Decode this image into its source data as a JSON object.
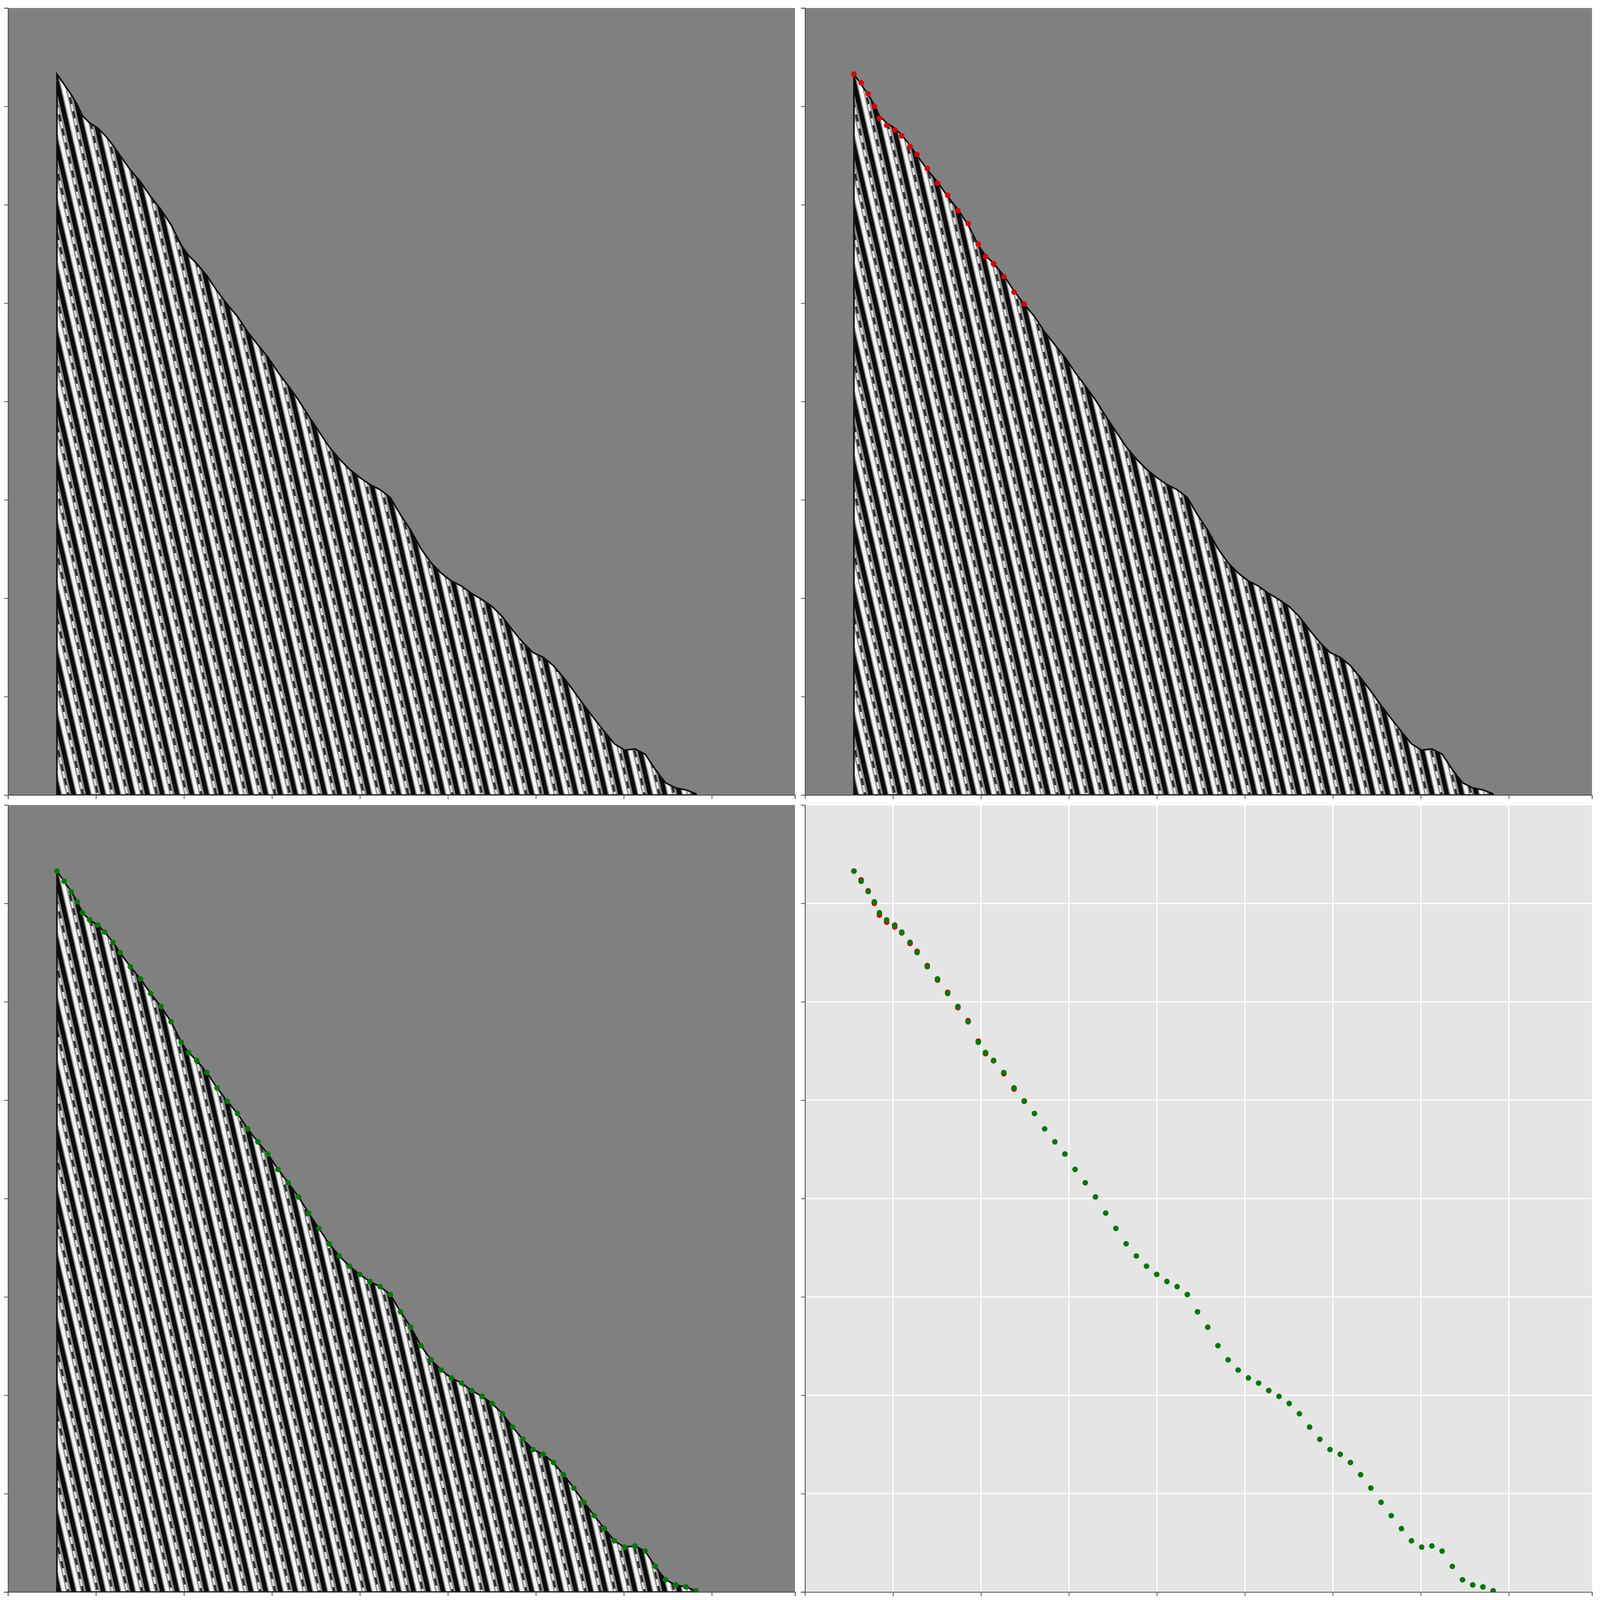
{
  "chart_data": [
    {
      "type": "seismic",
      "xlim": [
        0,
        447.3
      ],
      "ylim": [
        2000,
        0
      ],
      "xticks": [
        0,
        50,
        100,
        150,
        200,
        250,
        300,
        350,
        400
      ],
      "yticks": [
        0,
        250,
        500,
        750,
        1000,
        1250,
        1500,
        1750,
        2000
      ],
      "tick_labels": false,
      "first_arrival": {
        "x": [
          27.8,
          31.9,
          35.9,
          39.4,
          42.3,
          46.4,
          51.0,
          55.0,
          59.7,
          63.7,
          69.5,
          75.3,
          81.1,
          86.9,
          92.7,
          98.5,
          102.6,
          107.2,
          113.0,
          118.8,
          124.6,
          130.4,
          136.2,
          142.0,
          147.7,
          153.5,
          159.3,
          165.1,
          170.9,
          176.7,
          182.5,
          188.3,
          194.1,
          199.9,
          205.7,
          211.5,
          217.3,
          223.1,
          228.9,
          234.7,
          240.5,
          246.2,
          252.0,
          257.8,
          263.6,
          269.4,
          275.2,
          281.0,
          286.8,
          292.6,
          298.4,
          304.2,
          310.0,
          315.8,
          321.6,
          327.4,
          333.2,
          339.0,
          344.7,
          350.5,
          356.3,
          362.1,
          367.9,
          373.7,
          379.5,
          385.3,
          391.1
        ],
        "values": [
          168,
          194,
          220,
          246,
          274,
          292,
          305,
          323,
          349,
          375,
          411,
          442,
          479,
          512,
          551,
          603,
          629,
          649,
          680,
          719,
          753,
          784,
          823,
          856,
          887,
          926,
          960,
          996,
          1037,
          1076,
          1115,
          1146,
          1172,
          1193,
          1211,
          1224,
          1244,
          1288,
          1327,
          1374,
          1410,
          1436,
          1456,
          1469,
          1488,
          1503,
          1521,
          1547,
          1581,
          1612,
          1638,
          1650,
          1671,
          1702,
          1736,
          1772,
          1806,
          1839,
          1870,
          1886,
          1883,
          1896,
          1935,
          1969,
          1982,
          1987,
          1997
        ]
      }
    },
    {
      "type": "seismic",
      "xlim": [
        0,
        447.3
      ],
      "ylim": [
        2000,
        0
      ],
      "xticks": [
        0,
        50,
        100,
        150,
        200,
        250,
        300,
        350,
        400
      ],
      "yticks": [
        0,
        250,
        500,
        750,
        1000,
        1250,
        1500,
        1750,
        2000
      ],
      "tick_labels": false,
      "first_arrival": {
        "x": [
          27.8,
          31.9,
          35.9,
          39.4,
          42.3,
          46.4,
          51.0,
          55.0,
          59.7,
          63.7,
          69.5,
          75.3,
          81.1,
          86.9,
          92.7,
          98.5,
          102.6,
          107.2,
          113.0,
          118.8,
          124.6,
          130.4,
          136.2,
          142.0,
          147.7,
          153.5,
          159.3,
          165.1,
          170.9,
          176.7,
          182.5,
          188.3,
          194.1,
          199.9,
          205.7,
          211.5,
          217.3,
          223.1,
          228.9,
          234.7,
          240.5,
          246.2,
          252.0,
          257.8,
          263.6,
          269.4,
          275.2,
          281.0,
          286.8,
          292.6,
          298.4,
          304.2,
          310.0,
          315.8,
          321.6,
          327.4,
          333.2,
          339.0,
          344.7,
          350.5,
          356.3,
          362.1,
          367.9,
          373.7,
          379.5,
          385.3,
          391.1
        ],
        "values": [
          168,
          194,
          220,
          246,
          274,
          292,
          305,
          323,
          349,
          375,
          411,
          442,
          479,
          512,
          551,
          603,
          629,
          649,
          680,
          719,
          753,
          784,
          823,
          856,
          887,
          926,
          960,
          996,
          1037,
          1076,
          1115,
          1146,
          1172,
          1193,
          1211,
          1224,
          1244,
          1288,
          1327,
          1374,
          1410,
          1436,
          1456,
          1469,
          1488,
          1503,
          1521,
          1547,
          1581,
          1612,
          1638,
          1650,
          1671,
          1702,
          1736,
          1772,
          1806,
          1839,
          1870,
          1886,
          1883,
          1896,
          1935,
          1969,
          1982,
          1987,
          1997
        ]
      },
      "series": [
        {
          "color": "#e00000",
          "marker": "circle",
          "x": [
            27.8,
            31.9,
            35.9,
            39.4,
            42.3,
            46.4,
            51.0,
            55.0,
            59.7,
            63.7,
            69.5,
            75.3,
            81.1,
            86.9,
            92.7,
            98.5,
            102.6,
            107.2,
            113.0,
            118.8,
            124.6
          ],
          "values": [
            168,
            190,
            218,
            250,
            280,
            298,
            310,
            325,
            352,
            372,
            408,
            445,
            476,
            515,
            548,
            600,
            632,
            650,
            683,
            722,
            752
          ]
        }
      ]
    },
    {
      "type": "seismic",
      "xlim": [
        0,
        447.3
      ],
      "ylim": [
        2000,
        0
      ],
      "xticks": [
        0,
        50,
        100,
        150,
        200,
        250,
        300,
        350,
        400
      ],
      "yticks": [
        0,
        250,
        500,
        750,
        1000,
        1250,
        1500,
        1750,
        2000
      ],
      "tick_labels": false,
      "first_arrival": {
        "x": [
          27.8,
          31.9,
          35.9,
          39.4,
          42.3,
          46.4,
          51.0,
          55.0,
          59.7,
          63.7,
          69.5,
          75.3,
          81.1,
          86.9,
          92.7,
          98.5,
          102.6,
          107.2,
          113.0,
          118.8,
          124.6,
          130.4,
          136.2,
          142.0,
          147.7,
          153.5,
          159.3,
          165.1,
          170.9,
          176.7,
          182.5,
          188.3,
          194.1,
          199.9,
          205.7,
          211.5,
          217.3,
          223.1,
          228.9,
          234.7,
          240.5,
          246.2,
          252.0,
          257.8,
          263.6,
          269.4,
          275.2,
          281.0,
          286.8,
          292.6,
          298.4,
          304.2,
          310.0,
          315.8,
          321.6,
          327.4,
          333.2,
          339.0,
          344.7,
          350.5,
          356.3,
          362.1,
          367.9,
          373.7,
          379.5,
          385.3,
          391.1
        ],
        "values": [
          168,
          194,
          220,
          246,
          274,
          292,
          305,
          323,
          349,
          375,
          411,
          442,
          479,
          512,
          551,
          603,
          629,
          649,
          680,
          719,
          753,
          784,
          823,
          856,
          887,
          926,
          960,
          996,
          1037,
          1076,
          1115,
          1146,
          1172,
          1193,
          1211,
          1224,
          1244,
          1288,
          1327,
          1374,
          1410,
          1436,
          1456,
          1469,
          1488,
          1503,
          1521,
          1547,
          1581,
          1612,
          1638,
          1650,
          1671,
          1702,
          1736,
          1772,
          1806,
          1839,
          1870,
          1886,
          1883,
          1896,
          1935,
          1969,
          1982,
          1987,
          1997
        ]
      },
      "series": [
        {
          "color": "#007a00",
          "marker": "circle",
          "x": [
            27.8,
            31.9,
            35.9,
            39.4,
            42.3,
            46.4,
            51.0,
            55.0,
            59.7,
            63.7,
            69.5,
            75.3,
            81.1,
            86.9,
            92.7,
            98.5,
            102.6,
            107.2,
            113.0,
            118.8,
            124.6,
            130.4,
            136.2,
            142.0,
            147.7,
            153.5,
            159.3,
            165.1,
            170.9,
            176.7,
            182.5,
            188.3,
            194.1,
            199.9,
            205.7,
            211.5,
            217.3,
            223.1,
            228.9,
            234.7,
            240.5,
            246.2,
            252.0,
            257.8,
            263.6,
            269.4,
            275.2,
            281.0,
            286.8,
            292.6,
            298.4,
            304.2,
            310.0,
            315.8,
            321.6,
            327.4,
            333.2,
            339.0,
            344.7,
            350.5,
            356.3,
            362.1,
            367.9,
            373.7,
            379.5,
            385.3,
            391.1
          ],
          "values": [
            168,
            194,
            220,
            246,
            274,
            292,
            305,
            323,
            349,
            375,
            411,
            442,
            479,
            512,
            551,
            603,
            629,
            649,
            680,
            719,
            753,
            784,
            823,
            856,
            887,
            926,
            960,
            996,
            1037,
            1076,
            1115,
            1146,
            1172,
            1193,
            1211,
            1224,
            1244,
            1288,
            1327,
            1374,
            1410,
            1436,
            1456,
            1469,
            1488,
            1503,
            1521,
            1547,
            1581,
            1612,
            1638,
            1650,
            1671,
            1702,
            1736,
            1772,
            1806,
            1839,
            1870,
            1886,
            1883,
            1896,
            1935,
            1969,
            1982,
            1987,
            1997
          ]
        }
      ]
    },
    {
      "type": "scatter",
      "xlim": [
        0,
        447.3
      ],
      "ylim": [
        2000,
        0
      ],
      "xticks": [
        0,
        50,
        100,
        150,
        200,
        250,
        300,
        350,
        400
      ],
      "yticks": [
        0,
        250,
        500,
        750,
        1000,
        1250,
        1500,
        1750,
        2000
      ],
      "tick_labels": false,
      "grid": true,
      "series": [
        {
          "color": "#e00000",
          "marker": "circle",
          "x": [
            27.8,
            31.9,
            35.9,
            39.4,
            42.3,
            46.4,
            51.0,
            55.0,
            59.7,
            63.7,
            69.5,
            75.3,
            81.1,
            86.9,
            92.7,
            98.5,
            102.6,
            107.2,
            113.0,
            118.8,
            124.6
          ],
          "values": [
            168,
            190,
            218,
            250,
            280,
            298,
            310,
            325,
            352,
            372,
            408,
            445,
            476,
            515,
            548,
            600,
            632,
            650,
            683,
            722,
            752
          ]
        },
        {
          "color": "#007a00",
          "marker": "circle",
          "x": [
            27.8,
            31.9,
            35.9,
            39.4,
            42.3,
            46.4,
            51.0,
            55.0,
            59.7,
            63.7,
            69.5,
            75.3,
            81.1,
            86.9,
            92.7,
            98.5,
            102.6,
            107.2,
            113.0,
            118.8,
            124.6,
            130.4,
            136.2,
            142.0,
            147.7,
            153.5,
            159.3,
            165.1,
            170.9,
            176.7,
            182.5,
            188.3,
            194.1,
            199.9,
            205.7,
            211.5,
            217.3,
            223.1,
            228.9,
            234.7,
            240.5,
            246.2,
            252.0,
            257.8,
            263.6,
            269.4,
            275.2,
            281.0,
            286.8,
            292.6,
            298.4,
            304.2,
            310.0,
            315.8,
            321.6,
            327.4,
            333.2,
            339.0,
            344.7,
            350.5,
            356.3,
            362.1,
            367.9,
            373.7,
            379.5,
            385.3,
            391.1
          ],
          "values": [
            168,
            194,
            220,
            246,
            274,
            292,
            305,
            323,
            349,
            375,
            411,
            442,
            479,
            512,
            551,
            603,
            629,
            649,
            680,
            719,
            753,
            784,
            823,
            856,
            887,
            926,
            960,
            996,
            1037,
            1076,
            1115,
            1146,
            1172,
            1193,
            1211,
            1224,
            1244,
            1288,
            1327,
            1374,
            1410,
            1436,
            1456,
            1469,
            1488,
            1503,
            1521,
            1547,
            1581,
            1612,
            1638,
            1650,
            1671,
            1702,
            1736,
            1772,
            1806,
            1839,
            1870,
            1886,
            1883,
            1896,
            1935,
            1969,
            1982,
            1987,
            1997
          ]
        }
      ]
    }
  ]
}
